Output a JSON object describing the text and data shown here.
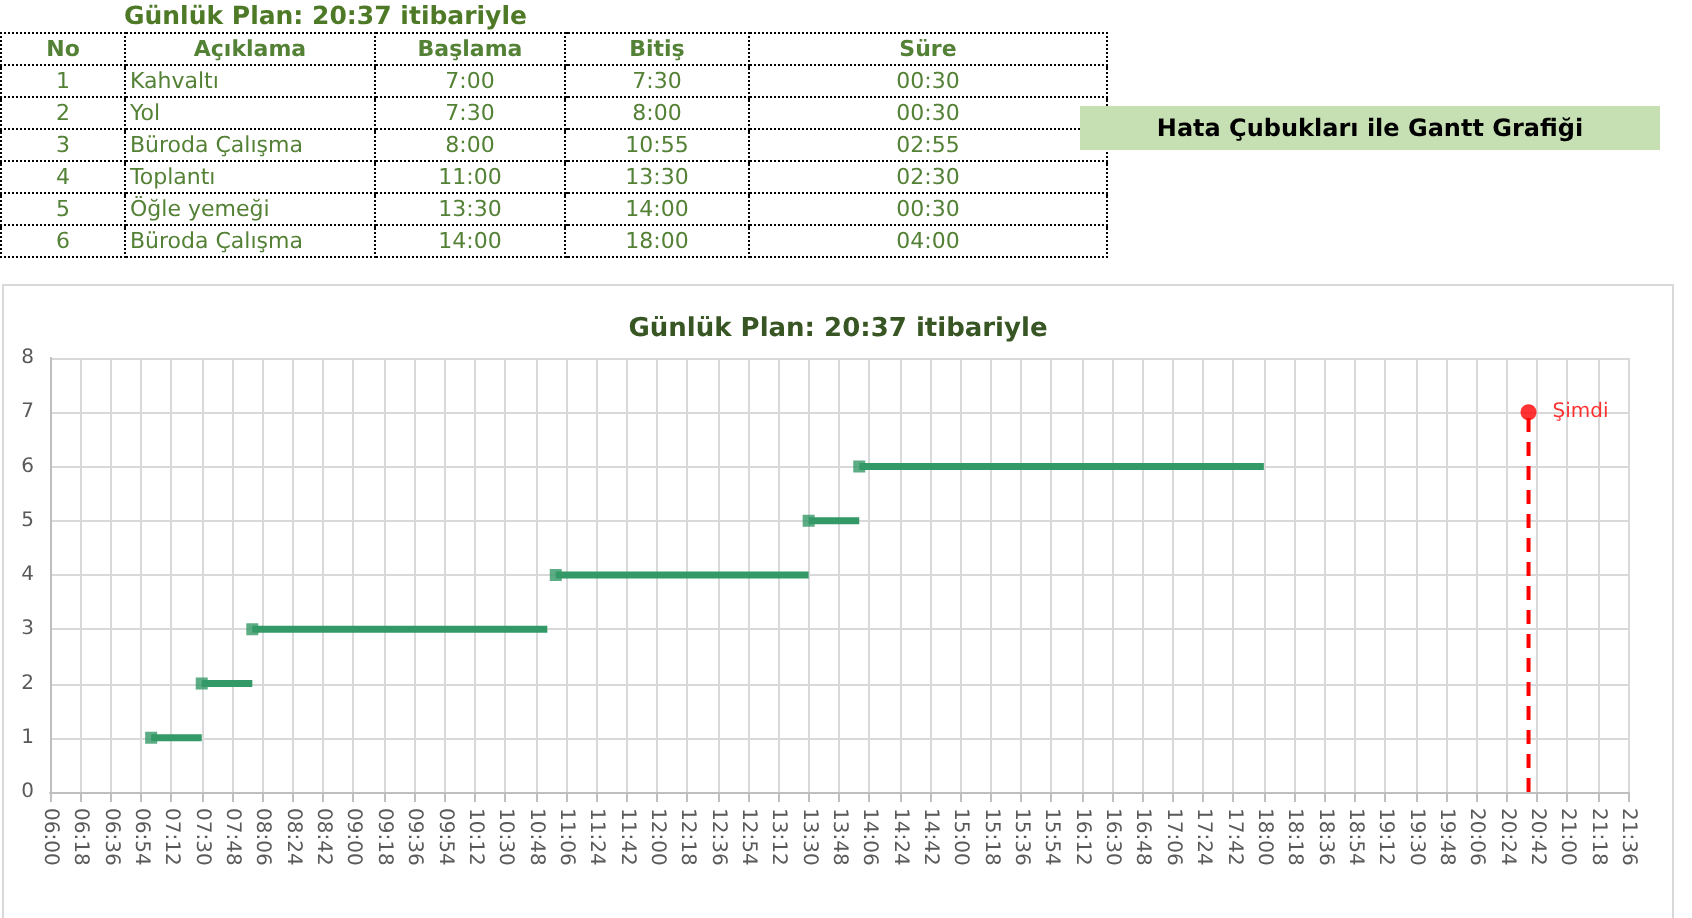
{
  "chart_data": {
    "type": "scatter",
    "title": "Günlük Plan: 20:37 itibariyle",
    "annotations": [
      "Günlük Plan: 20:37 itibariyle",
      "No",
      "Açıklama",
      "Başlama",
      "Bitiş",
      "Süre",
      "1",
      "Kahvaltı",
      "7:00",
      "7:30",
      "00:30",
      "2",
      "Yol",
      "7:30",
      "8:00",
      "00:30",
      "3",
      "Büroda Çalışma",
      "8:00",
      "10:55",
      "02:55",
      "4",
      "Toplantı",
      "11:00",
      "13:30",
      "02:30",
      "5",
      "Öğle yemeği",
      "13:30",
      "14:00",
      "00:30",
      "6",
      "Büroda Çalışma",
      "14:00",
      "18:00",
      "04:00",
      "Hata Çubukları ile Gantt Grafiği"
    ],
    "series": [
      {
        "color": "#339966",
        "marker": "square",
        "line_style": "solid",
        "x": [
          7,
          7.5,
          8,
          11,
          13.5,
          14
        ],
        "values": [
          1,
          2,
          3,
          4,
          5,
          6
        ],
        "xerrors": [
          [
            7,
            7.5
          ],
          [
            7.5,
            8
          ],
          [
            8,
            10.9167
          ],
          [
            11,
            13.5
          ],
          [
            13.5,
            14
          ],
          [
            14,
            18
          ]
        ]
      },
      {
        "name": "Şimdi",
        "color": "#ff0000",
        "marker": "circle",
        "line_style": "dashed",
        "x": [
          20.6167
        ],
        "values": [
          7
        ],
        "errors": [
          [
            0,
            7
          ]
        ]
      }
    ],
    "xlim": [
      6,
      21.6
    ],
    "xticks": [
      {
        "value": 6,
        "label": "06:00"
      },
      {
        "value": 6.3,
        "label": "06:18"
      },
      {
        "value": 6.6,
        "label": "06:36"
      },
      {
        "value": 6.9,
        "label": "06:54"
      },
      {
        "value": 7.2,
        "label": "07:12"
      },
      {
        "value": 7.5,
        "label": "07:30"
      },
      {
        "value": 7.8,
        "label": "07:48"
      },
      {
        "value": 8.1,
        "label": "08:06"
      },
      {
        "value": 8.4,
        "label": "08:24"
      },
      {
        "value": 8.7,
        "label": "08:42"
      },
      {
        "value": 9,
        "label": "09:00"
      },
      {
        "value": 9.3,
        "label": "09:18"
      },
      {
        "value": 9.6,
        "label": "09:36"
      },
      {
        "value": 9.9,
        "label": "09:54"
      },
      {
        "value": 10.2,
        "label": "10:12"
      },
      {
        "value": 10.5,
        "label": "10:30"
      },
      {
        "value": 10.8,
        "label": "10:48"
      },
      {
        "value": 11.1,
        "label": "11:06"
      },
      {
        "value": 11.4,
        "label": "11:24"
      },
      {
        "value": 11.7,
        "label": "11:42"
      },
      {
        "value": 12,
        "label": "12:00"
      },
      {
        "value": 12.3,
        "label": "12:18"
      },
      {
        "value": 12.6,
        "label": "12:36"
      },
      {
        "value": 12.9,
        "label": "12:54"
      },
      {
        "value": 13.2,
        "label": "13:12"
      },
      {
        "value": 13.5,
        "label": "13:30"
      },
      {
        "value": 13.8,
        "label": "13:48"
      },
      {
        "value": 14.1,
        "label": "14:06"
      },
      {
        "value": 14.4,
        "label": "14:24"
      },
      {
        "value": 14.7,
        "label": "14:42"
      },
      {
        "value": 15,
        "label": "15:00"
      },
      {
        "value": 15.3,
        "label": "15:18"
      },
      {
        "value": 15.6,
        "label": "15:36"
      },
      {
        "value": 15.9,
        "label": "15:54"
      },
      {
        "value": 16.2,
        "label": "16:12"
      },
      {
        "value": 16.5,
        "label": "16:30"
      },
      {
        "value": 16.8,
        "label": "16:48"
      },
      {
        "value": 17.1,
        "label": "17:06"
      },
      {
        "value": 17.4,
        "label": "17:24"
      },
      {
        "value": 17.7,
        "label": "17:42"
      },
      {
        "value": 18,
        "label": "18:00"
      },
      {
        "value": 18.3,
        "label": "18:18"
      },
      {
        "value": 18.6,
        "label": "18:36"
      },
      {
        "value": 18.9,
        "label": "18:54"
      },
      {
        "value": 19.2,
        "label": "19:12"
      },
      {
        "value": 19.5,
        "label": "19:30"
      },
      {
        "value": 19.8,
        "label": "19:48"
      },
      {
        "value": 20.1,
        "label": "20:06"
      },
      {
        "value": 20.4,
        "label": "20:24"
      },
      {
        "value": 20.7,
        "label": "20:42"
      },
      {
        "value": 21,
        "label": "21:00"
      },
      {
        "value": 21.3,
        "label": "21:18"
      },
      {
        "value": 21.6,
        "label": "21:36"
      }
    ],
    "ylim": [
      0,
      8
    ],
    "yticks": [
      0,
      1,
      2,
      3,
      4,
      5,
      6,
      7,
      8
    ],
    "grid": true,
    "legend": false
  }
}
